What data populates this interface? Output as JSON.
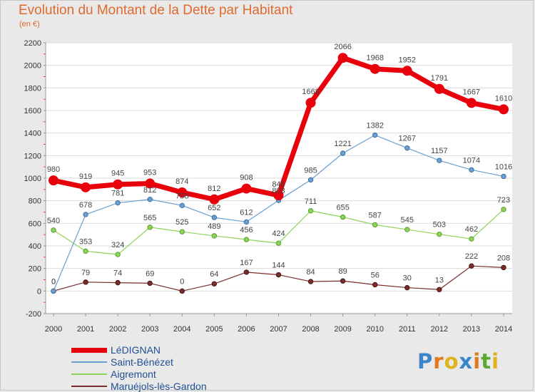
{
  "header": {
    "title": "Evolution du Montant de la Dette par Habitant",
    "unit": "(en €)"
  },
  "logo": {
    "text": "Proxiti",
    "letters": [
      "P",
      "r",
      "o",
      "x",
      "i",
      "t",
      "i"
    ],
    "colors": [
      "#3a86c8",
      "#e07a1e",
      "#e0b21e",
      "#3a86c8",
      "#e07a1e",
      "#5aa832",
      "#e0b21e"
    ]
  },
  "chart_data": {
    "type": "line",
    "x": [
      "2000",
      "2001",
      "2002",
      "2003",
      "2004",
      "2005",
      "2006",
      "2007",
      "2008",
      "2009",
      "2010",
      "2011",
      "2012",
      "2013",
      "2014"
    ],
    "ylim": [
      -200,
      2200
    ],
    "yticks": [
      -200,
      0,
      200,
      400,
      600,
      800,
      1000,
      1200,
      1400,
      1600,
      1800,
      2000,
      2200
    ],
    "grid": "horizontal",
    "legend_position": "bottom-left",
    "series": [
      {
        "name": "LéDIGNAN",
        "color": "#e8000b",
        "values": [
          980,
          919,
          945,
          953,
          874,
          812,
          908,
          848,
          1668,
          2066,
          1968,
          1952,
          1791,
          1667,
          1610
        ],
        "labels": [
          "980",
          "919",
          "945",
          "953",
          "874",
          "812",
          "908",
          "848",
          "1668",
          "2066",
          "1968",
          "1952",
          "1791",
          "1667",
          "1610"
        ]
      },
      {
        "name": "Saint-Bénézet",
        "color": "#6c9fcf",
        "values": [
          0,
          678,
          781,
          812,
          758,
          652,
          612,
          803,
          985,
          1221,
          1382,
          1267,
          1157,
          1074,
          1016
        ],
        "labels": [
          "0",
          "678",
          "781",
          "812",
          "758",
          "652",
          "612",
          "803",
          "985",
          "1221",
          "1382",
          "1267",
          "1157",
          "1074",
          "1016"
        ]
      },
      {
        "name": "Aigremont",
        "color": "#8cd35a",
        "values": [
          540,
          353,
          324,
          565,
          525,
          489,
          456,
          424,
          711,
          655,
          587,
          545,
          503,
          462,
          723
        ],
        "labels": [
          "540",
          "353",
          "324",
          "565",
          "525",
          "489",
          "456",
          "424",
          "711",
          "655",
          "587",
          "545",
          "503",
          "462",
          "723"
        ]
      },
      {
        "name": "Maruéjols-lès-Gardon",
        "color": "#7a2b2b",
        "values": [
          0,
          79,
          74,
          69,
          0,
          64,
          167,
          144,
          84,
          89,
          56,
          30,
          13,
          222,
          208
        ],
        "labels": [
          "0",
          "79",
          "74",
          "69",
          "0",
          "64",
          "167",
          "144",
          "84",
          "89",
          "56",
          "30",
          "13",
          "222",
          "208"
        ]
      }
    ]
  }
}
